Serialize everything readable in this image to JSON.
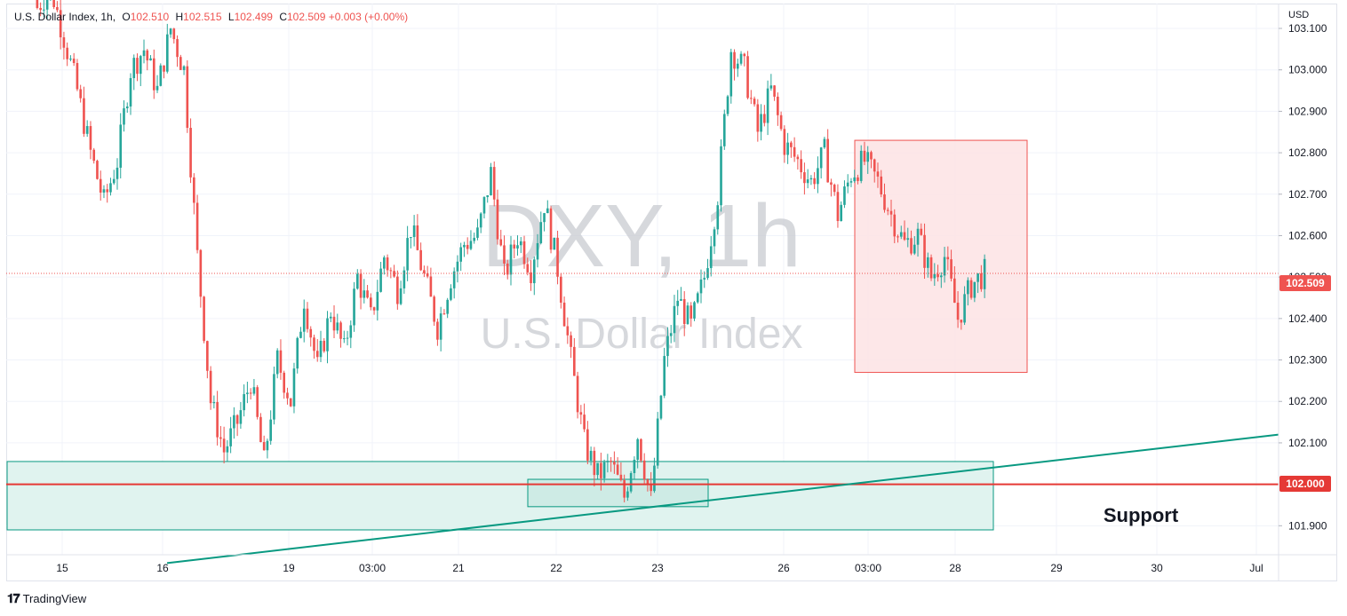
{
  "legend": {
    "symbol": "U.S. Dollar Index, 1h,",
    "open_label": "O",
    "open": "102.510",
    "high_label": "H",
    "high": "102.515",
    "low_label": "L",
    "low": "102.499",
    "close_label": "C",
    "close": "102.509",
    "change": "+0.003 (+0.00%)"
  },
  "watermark": {
    "ticker": "DXY, 1h",
    "name": "U.S. Dollar Index"
  },
  "currency": "USD",
  "branding": "TradingView",
  "annotation": "Support",
  "colors": {
    "up": "#26a69a",
    "down": "#ef5350",
    "support_line": "#e53935",
    "trend": "#089981",
    "zone_fill": "#e0f3ef",
    "box_fill": "#fde3e4"
  },
  "chart_data": {
    "type": "candlestick",
    "x_ticks": [
      "15",
      "16",
      "19",
      "03:00",
      "21",
      "22",
      "23",
      "26",
      "03:00",
      "28",
      "29",
      "30",
      "Jul"
    ],
    "y_ticks": [
      "103.100",
      "103.000",
      "102.900",
      "102.800",
      "102.700",
      "102.600",
      "102.500",
      "102.400",
      "102.300",
      "102.200",
      "102.100",
      "101.900"
    ],
    "ylim": [
      101.83,
      103.16
    ],
    "last_price": "102.509",
    "support_level": "102.000",
    "support_zone": [
      101.89,
      102.055
    ],
    "trendline": {
      "from": {
        "x": "16",
        "y": 101.81
      },
      "to": {
        "x": "29+",
        "y": 102.12
      }
    },
    "highlight_box": {
      "y_range": [
        102.27,
        102.83
      ]
    },
    "close_path": [
      103.15,
      103.2,
      103.08,
      102.95,
      102.8,
      102.68,
      102.78,
      103.0,
      103.05,
      102.95,
      103.1,
      103.0,
      102.55,
      102.2,
      102.08,
      102.15,
      102.25,
      102.05,
      102.3,
      102.2,
      102.45,
      102.28,
      102.42,
      102.32,
      102.5,
      102.4,
      102.55,
      102.47,
      102.62,
      102.5,
      102.38,
      102.5,
      102.58,
      102.6,
      102.75,
      102.5,
      102.6,
      102.52,
      102.68,
      102.52,
      102.3,
      102.1,
      102.02,
      102.05,
      101.97,
      102.12,
      101.96,
      102.3,
      102.45,
      102.38,
      102.5,
      102.7,
      103.05,
      103.0,
      102.85,
      102.95,
      102.82,
      102.78,
      102.73,
      102.8,
      102.65,
      102.75,
      102.78,
      102.73,
      102.65,
      102.58,
      102.6,
      102.5,
      102.55,
      102.4,
      102.48,
      102.51
    ]
  }
}
